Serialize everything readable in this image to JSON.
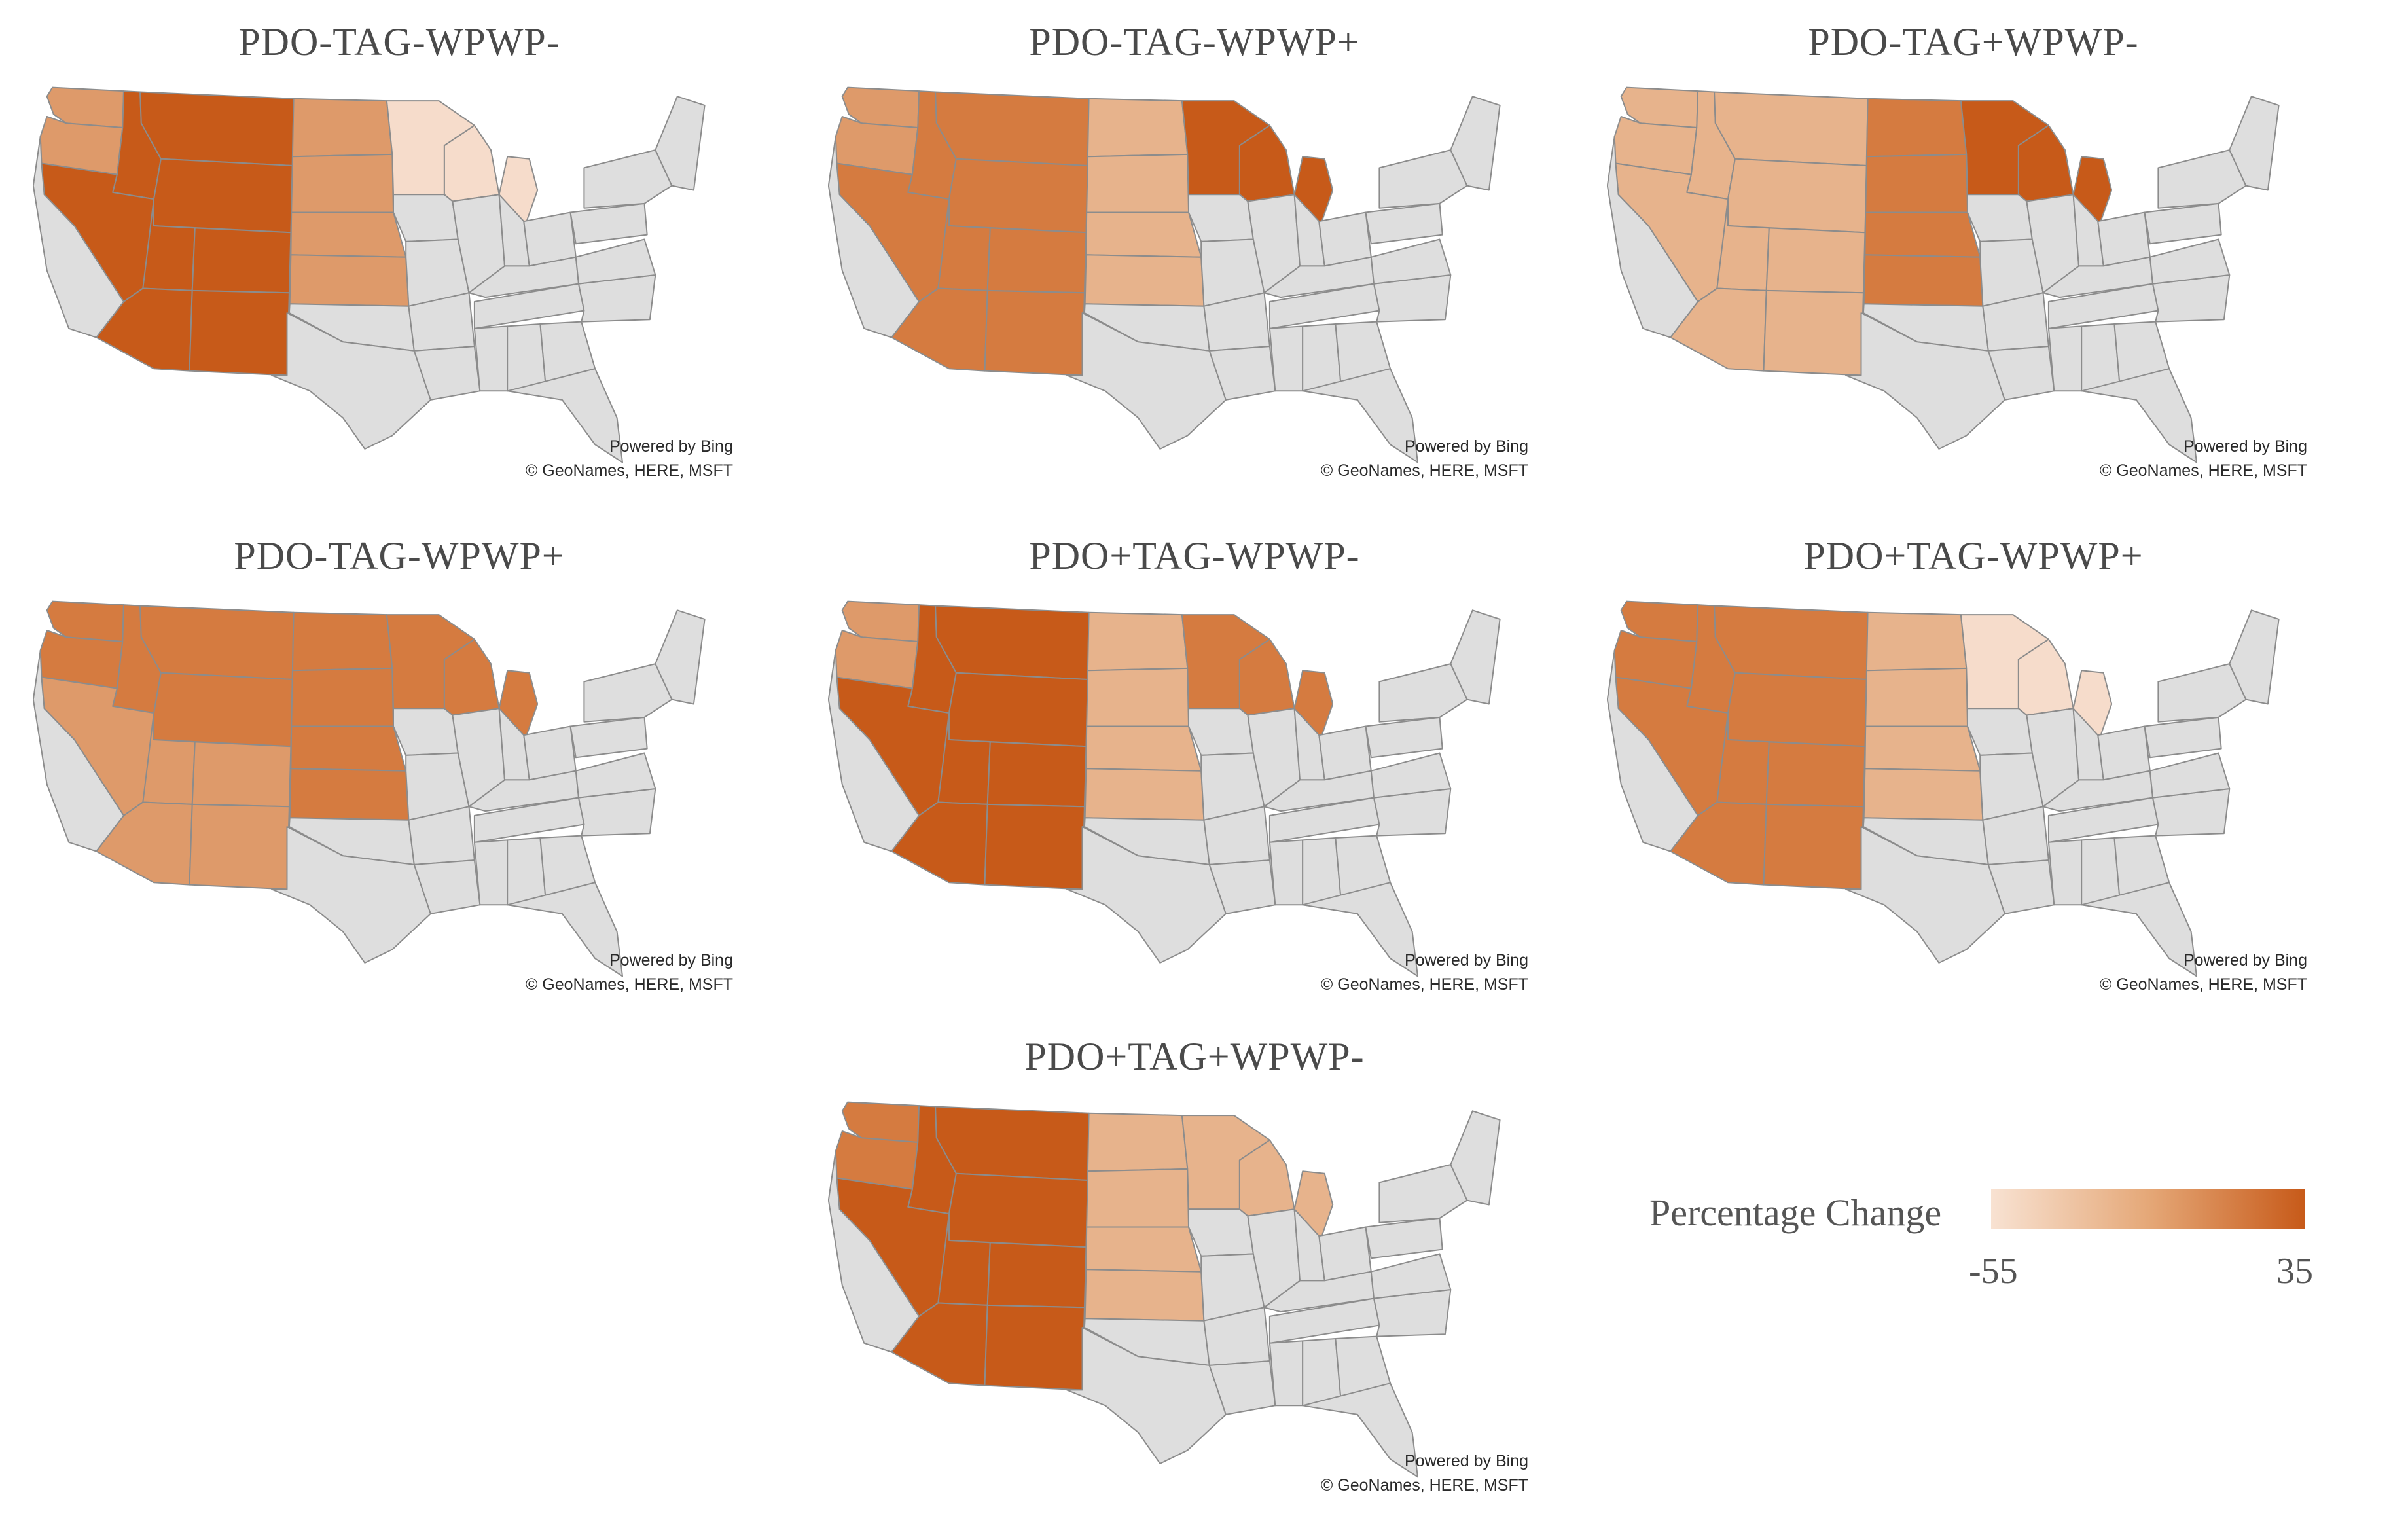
{
  "colors": {
    "neutral": "#dedede",
    "level_high": "#c75a19",
    "level_mid": "#d57b40",
    "level_midlow": "#de9a6a",
    "level_low": "#e7b38c",
    "level_pale": "#f6dccb"
  },
  "credit": {
    "line1": "Powered by Bing",
    "line2": "© GeoNames, HERE, MSFT"
  },
  "legend": {
    "title": "Percentage Change",
    "min": "-55",
    "max": "35"
  },
  "panels": [
    {
      "title": "PDO-TAG-WPWP-",
      "regions": {
        "pnw": "level_midlow",
        "inner_west": "level_high",
        "southwest": "level_high",
        "plains": "level_midlow",
        "upper_midwest": "level_pale"
      }
    },
    {
      "title": "PDO-TAG-WPWP+",
      "regions": {
        "pnw": "level_midlow",
        "inner_west": "level_mid",
        "southwest": "level_mid",
        "plains": "level_low",
        "upper_midwest": "level_high"
      }
    },
    {
      "title": "PDO-TAG+WPWP-",
      "regions": {
        "pnw": "level_low",
        "inner_west": "level_low",
        "southwest": "level_low",
        "plains": "level_mid",
        "upper_midwest": "level_high"
      }
    },
    {
      "title": "PDO-TAG-WPWP+",
      "regions": {
        "pnw": "level_mid",
        "inner_west": "level_mid",
        "southwest": "level_midlow",
        "plains": "level_mid",
        "upper_midwest": "level_mid"
      }
    },
    {
      "title": "PDO+TAG-WPWP-",
      "regions": {
        "pnw": "level_midlow",
        "inner_west": "level_high",
        "southwest": "level_high",
        "plains": "level_low",
        "upper_midwest": "level_mid"
      }
    },
    {
      "title": "PDO+TAG-WPWP+",
      "regions": {
        "pnw": "level_mid",
        "inner_west": "level_mid",
        "southwest": "level_mid",
        "plains": "level_low",
        "upper_midwest": "level_pale"
      }
    },
    {
      "title": "PDO+TAG+WPWP-",
      "regions": {
        "pnw": "level_mid",
        "inner_west": "level_high",
        "southwest": "level_high",
        "plains": "level_low",
        "upper_midwest": "level_low"
      }
    }
  ]
}
